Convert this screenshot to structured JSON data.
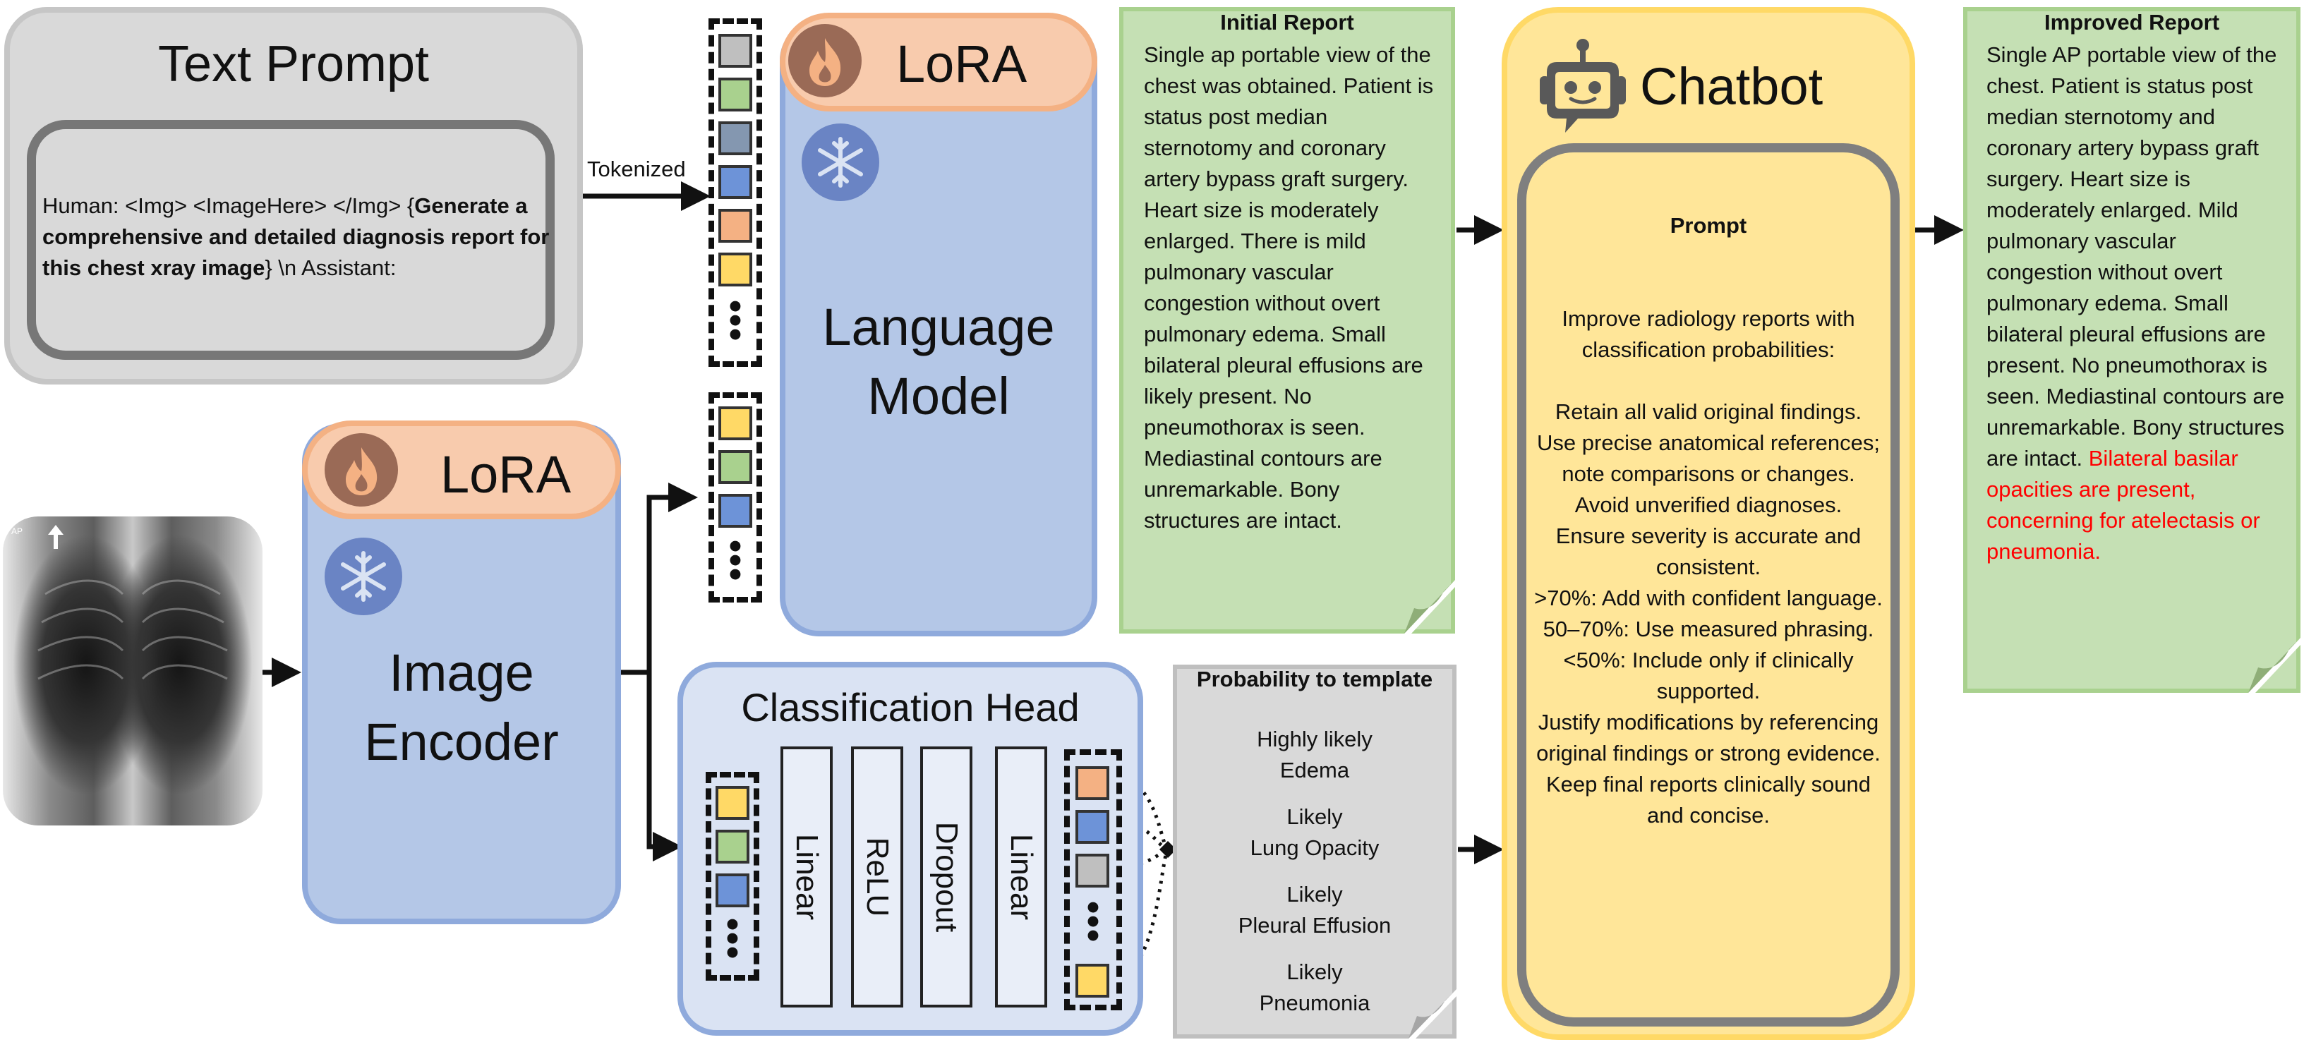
{
  "text_prompt": {
    "title": "Text Prompt",
    "prefix": "Human: <Img> <ImageHere> </Img> {",
    "bold": "Generate a comprehensive and detailed diagnosis report for this chest xray image",
    "suffix": "} \\n Assistant:"
  },
  "tokenized_label": "Tokenized",
  "lora_label": "LoRA",
  "language_model": {
    "line1": "Language",
    "line2": "Model"
  },
  "image_encoder": {
    "line1": "Image",
    "line2": "Encoder"
  },
  "xray": {
    "marker": "AP"
  },
  "classification_head": {
    "title": "Classification Head",
    "layers": [
      "Linear",
      "ReLU",
      "Dropout",
      "Linear"
    ]
  },
  "probability_template": {
    "title": "Probability to template",
    "items": [
      {
        "likelihood": "Highly likely",
        "finding": "Edema"
      },
      {
        "likelihood": "Likely",
        "finding": "Lung Opacity"
      },
      {
        "likelihood": "Likely",
        "finding": "Pleural Effusion"
      },
      {
        "likelihood": "Likely",
        "finding": "Pneumonia"
      }
    ]
  },
  "initial_report": {
    "title": "Initial Report",
    "text": "Single ap portable view of the chest was obtained. Patient is status post median sternotomy and coronary artery bypass graft surgery. Heart size is moderately enlarged. There is mild pulmonary vascular congestion without overt pulmonary edema. Small bilateral pleural effusions are likely present. No pneumothorax is seen. Mediastinal contours are unremarkable. Bony structures are intact."
  },
  "chatbot": {
    "title": "Chatbot",
    "prompt_label": "Prompt",
    "prompt_text": "Improve radiology reports with classification probabilities:\n\nRetain all valid original findings.\nUse precise anatomical references; note comparisons or changes.\nAvoid unverified diagnoses.\nEnsure severity is accurate and consistent.\n>70%: Add with confident language.\n50–70%: Use measured phrasing.\n<50%: Include only if clinically supported.\nJustify modifications by referencing original findings or strong evidence.\nKeep final reports clinically sound and concise."
  },
  "improved_report": {
    "title": "Improved Report",
    "text": "Single AP portable view of the chest. Patient is status post median sternotomy and coronary artery bypass graft surgery. Heart size is moderately enlarged. Mild pulmonary vascular congestion without overt pulmonary edema. Small bilateral pleural effusions are present. No pneumothorax is seen. Mediastinal contours are unremarkable. Bony structures are intact.",
    "highlight": "Bilateral basilar opacities are present, concerning for atelectasis or pneumonia.",
    "highlight_color": "#ff0000"
  },
  "colors": {
    "lora_fill": "#f8cbad",
    "module_fill": "#b4c7e7",
    "report_fill": "#c5e0b4",
    "chatbot_fill": "#ffe699",
    "template_fill": "#d9d9d9"
  }
}
